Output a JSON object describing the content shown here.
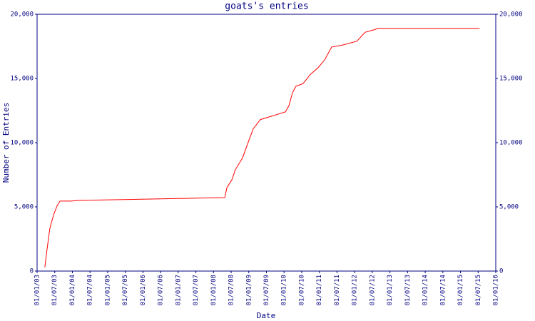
{
  "chart_data": {
    "type": "line",
    "title": "goats's entries",
    "x_label": "Date",
    "y_label": "Number of Entries",
    "x": [
      2003.22,
      2003.28,
      2003.36,
      2003.47,
      2003.57,
      2003.65,
      2003.97,
      2004.17,
      2005.99,
      2007.0,
      2007.91,
      2008.32,
      2008.38,
      2008.52,
      2008.62,
      2008.82,
      2009.02,
      2009.13,
      2009.33,
      2009.63,
      2010.04,
      2010.14,
      2010.24,
      2010.34,
      2010.54,
      2010.74,
      2010.95,
      2011.15,
      2011.35,
      2011.65,
      2012.06,
      2012.3,
      2012.56,
      2012.66,
      2015.54
    ],
    "series": [
      {
        "name": "entries",
        "color": "#ff0000",
        "values": [
          300,
          1650,
          3300,
          4400,
          5100,
          5450,
          5450,
          5500,
          5600,
          5650,
          5700,
          5720,
          6500,
          7100,
          7900,
          8800,
          10300,
          11100,
          11800,
          12050,
          12400,
          12900,
          13900,
          14400,
          14600,
          15300,
          15800,
          16450,
          17450,
          17600,
          17900,
          18600,
          18800,
          18900,
          18900
        ]
      }
    ],
    "xlim": [
      2003,
      2016
    ],
    "xticks": [
      {
        "value": 2003,
        "label": "01/01/03"
      },
      {
        "value": 2003.5,
        "label": "01/07/03"
      },
      {
        "value": 2004,
        "label": "01/01/04"
      },
      {
        "value": 2004.5,
        "label": "01/07/04"
      },
      {
        "value": 2005,
        "label": "01/01/05"
      },
      {
        "value": 2005.5,
        "label": "01/07/05"
      },
      {
        "value": 2006,
        "label": "01/01/06"
      },
      {
        "value": 2006.5,
        "label": "01/07/06"
      },
      {
        "value": 2007,
        "label": "01/01/07"
      },
      {
        "value": 2007.5,
        "label": "01/07/07"
      },
      {
        "value": 2008,
        "label": "01/01/08"
      },
      {
        "value": 2008.5,
        "label": "01/07/08"
      },
      {
        "value": 2009,
        "label": "01/01/09"
      },
      {
        "value": 2009.5,
        "label": "01/07/09"
      },
      {
        "value": 2010,
        "label": "01/01/10"
      },
      {
        "value": 2010.5,
        "label": "01/07/10"
      },
      {
        "value": 2011,
        "label": "01/01/11"
      },
      {
        "value": 2011.5,
        "label": "01/07/11"
      },
      {
        "value": 2012,
        "label": "01/01/12"
      },
      {
        "value": 2012.5,
        "label": "01/07/12"
      },
      {
        "value": 2013,
        "label": "01/01/13"
      },
      {
        "value": 2013.5,
        "label": "01/07/13"
      },
      {
        "value": 2014,
        "label": "01/01/14"
      },
      {
        "value": 2014.5,
        "label": "01/07/14"
      },
      {
        "value": 2015,
        "label": "01/01/15"
      },
      {
        "value": 2015.5,
        "label": "01/07/15"
      },
      {
        "value": 2016,
        "label": "01/01/16"
      }
    ],
    "ylim": [
      0,
      20000
    ],
    "yticks": [
      0,
      {
        "value": 5000,
        "label": "5,000"
      },
      {
        "value": 10000,
        "label": "10,000"
      },
      {
        "value": 15000,
        "label": "15,000"
      },
      {
        "value": 20000,
        "label": "20,000"
      }
    ],
    "y2lim": [
      0,
      20000
    ],
    "y2ticks": [
      0,
      {
        "value": 5000,
        "label": "5,000"
      },
      {
        "value": 10000,
        "label": "10,000"
      },
      {
        "value": 15000,
        "label": "15,000"
      },
      {
        "value": 20000,
        "label": "20,000"
      }
    ],
    "axis_color": "#000080"
  }
}
